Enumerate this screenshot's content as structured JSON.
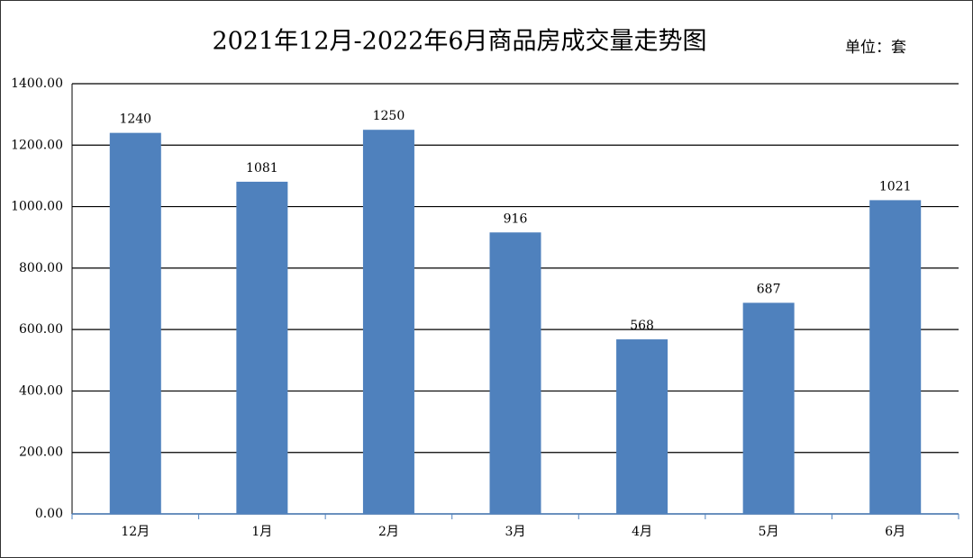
{
  "chart_data": {
    "type": "bar",
    "title": "2021年12月-2022年6月商品房成交量走势图",
    "unit": "单位：套",
    "categories": [
      "12月",
      "1月",
      "2月",
      "3月",
      "4月",
      "5月",
      "6月"
    ],
    "values": [
      1240,
      1081,
      1250,
      916,
      568,
      687,
      1021
    ],
    "color": "#4f81bd",
    "ylim": [
      0,
      1400
    ],
    "yticks": [
      {
        "value": 0,
        "label": "0.00"
      },
      {
        "value": 200,
        "label": "200.00"
      },
      {
        "value": 400,
        "label": "400.00"
      },
      {
        "value": 600,
        "label": "600.00"
      },
      {
        "value": 800,
        "label": "800.00"
      },
      {
        "value": 1000,
        "label": "1000.00"
      },
      {
        "value": 1200,
        "label": "1200.00"
      },
      {
        "value": 1400,
        "label": "1400.00"
      }
    ],
    "grid": true
  }
}
